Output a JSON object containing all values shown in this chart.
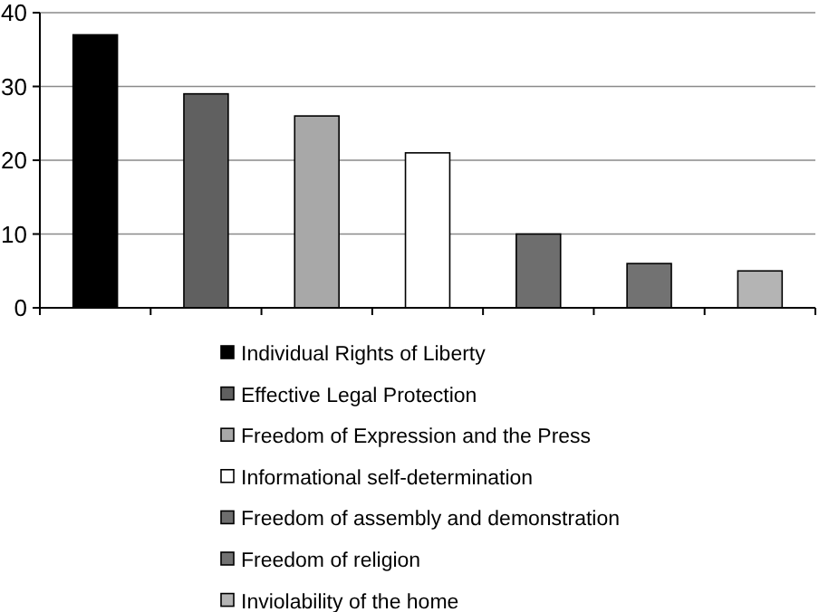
{
  "chart_data": {
    "type": "bar",
    "stacked": true,
    "categories": [
      null,
      null,
      null,
      null,
      null,
      null,
      null
    ],
    "series": [
      {
        "name": "Individual Rights of Liberty",
        "color": "#000000",
        "values": [
          37,
          null,
          null,
          null,
          null,
          null,
          null
        ]
      },
      {
        "name": "Effective Legal Protection",
        "color": "#606060",
        "values": [
          null,
          29,
          null,
          null,
          null,
          null,
          null
        ]
      },
      {
        "name": "Freedom of Expression and the Press",
        "color": "#a8a8a8",
        "values": [
          null,
          null,
          26,
          null,
          null,
          null,
          null
        ]
      },
      {
        "name": "Informational self-determination",
        "color": "#ffffff",
        "values": [
          null,
          null,
          null,
          21,
          null,
          null,
          null
        ]
      },
      {
        "name": "Freedom of assembly and demonstration",
        "color": "#6e6e6e",
        "values": [
          null,
          null,
          null,
          null,
          10,
          null,
          null
        ]
      },
      {
        "name": "Freedom of religion",
        "color": "#727272",
        "values": [
          null,
          null,
          null,
          null,
          null,
          6,
          null
        ]
      },
      {
        "name": "Inviolability of the home",
        "color": "#b4b4b4",
        "values": [
          null,
          null,
          null,
          null,
          null,
          null,
          5
        ]
      }
    ],
    "ylim": [
      0,
      40
    ],
    "yticks": [
      0,
      10,
      20,
      30,
      40
    ],
    "grid": "y",
    "legend": "bottom"
  }
}
